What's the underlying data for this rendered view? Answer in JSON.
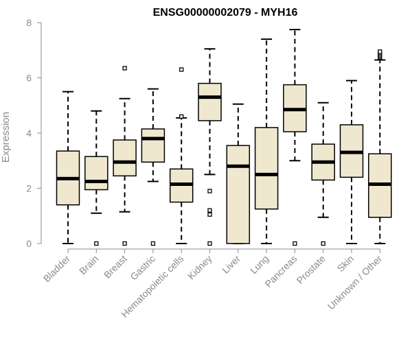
{
  "chart_data": {
    "type": "boxplot",
    "title": "ENSG00000002079 - MYH16",
    "ylabel": "Expression",
    "xlabel": "",
    "ylim": [
      0,
      8
    ],
    "yticks": [
      0,
      2,
      4,
      6,
      8
    ],
    "box_color": "#efe8cf",
    "categories": [
      "Bladder",
      "Brain",
      "Breast",
      "Gastric",
      "Hematopoietic cells",
      "Kidney",
      "Liver",
      "Lung",
      "Pancreas",
      "Prostate",
      "Skin",
      "Unknown / Other"
    ],
    "boxes": [
      {
        "name": "Bladder",
        "whisker_low": 0.0,
        "q1": 1.4,
        "median": 2.35,
        "q3": 3.35,
        "whisker_high": 5.5,
        "outliers": []
      },
      {
        "name": "Brain",
        "whisker_low": 1.1,
        "q1": 1.95,
        "median": 2.25,
        "q3": 3.15,
        "whisker_high": 4.8,
        "outliers": [
          0.0
        ]
      },
      {
        "name": "Breast",
        "whisker_low": 1.15,
        "q1": 2.45,
        "median": 2.95,
        "q3": 3.75,
        "whisker_high": 5.25,
        "outliers": [
          0.0,
          6.35
        ]
      },
      {
        "name": "Gastric",
        "whisker_low": 2.25,
        "q1": 2.95,
        "median": 3.8,
        "q3": 4.15,
        "whisker_high": 5.6,
        "outliers": [
          0.0
        ]
      },
      {
        "name": "Hematopoietic cells",
        "whisker_low": 0.0,
        "q1": 1.5,
        "median": 2.15,
        "q3": 2.7,
        "whisker_high": 4.55,
        "outliers": [
          4.6,
          6.3
        ]
      },
      {
        "name": "Kidney",
        "whisker_low": 2.5,
        "q1": 4.45,
        "median": 5.3,
        "q3": 5.8,
        "whisker_high": 7.05,
        "outliers": [
          0.0,
          1.05,
          1.2,
          1.9
        ]
      },
      {
        "name": "Liver",
        "whisker_low": 0.0,
        "q1": 0.0,
        "median": 2.8,
        "q3": 3.55,
        "whisker_high": 5.05,
        "outliers": []
      },
      {
        "name": "Lung",
        "whisker_low": 0.0,
        "q1": 1.25,
        "median": 2.5,
        "q3": 4.2,
        "whisker_high": 7.4,
        "outliers": []
      },
      {
        "name": "Pancreas",
        "whisker_low": 3.0,
        "q1": 4.05,
        "median": 4.85,
        "q3": 5.75,
        "whisker_high": 7.75,
        "outliers": [
          0.0
        ]
      },
      {
        "name": "Prostate",
        "whisker_low": 0.95,
        "q1": 2.3,
        "median": 2.95,
        "q3": 3.6,
        "whisker_high": 5.1,
        "outliers": [
          0.0
        ]
      },
      {
        "name": "Skin",
        "whisker_low": 0.0,
        "q1": 2.4,
        "median": 3.3,
        "q3": 4.3,
        "whisker_high": 5.9,
        "outliers": []
      },
      {
        "name": "Unknown / Other",
        "whisker_low": 0.0,
        "q1": 0.95,
        "median": 2.15,
        "q3": 3.25,
        "whisker_high": 6.65,
        "outliers": [
          6.75,
          6.8,
          6.85,
          6.9,
          6.95
        ]
      }
    ]
  }
}
